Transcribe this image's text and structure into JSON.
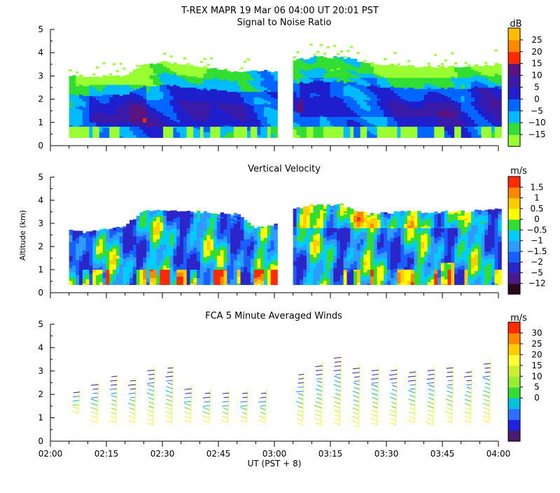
{
  "header": {
    "line1": "T-REX   MAPR 19 Mar 06   04:00 UT   20:01   PST"
  },
  "shared_axes": {
    "ylabel": "Altitude (km)",
    "xlabel": "UT  (PST + 8)",
    "x_ticks": [
      "02:00",
      "02:15",
      "02:30",
      "02:45",
      "03:00",
      "03:15",
      "03:30",
      "03:45",
      "04:00"
    ],
    "x_range_min": [
      0,
      120
    ],
    "y_ticks": [
      "0",
      "1",
      "2",
      "3",
      "4",
      "5"
    ],
    "y_range_km": [
      0,
      5
    ]
  },
  "colors": {
    "palette_snr": [
      "#99ff33",
      "#33dd33",
      "#00bbff",
      "#0066ff",
      "#1f1fcc",
      "#3a1aa8",
      "#5a137f",
      "#ff2a00",
      "#ff8800",
      "#ffbb00"
    ],
    "palette_vv": [
      "#2a0a1e",
      "#4a1a8a",
      "#2a26c8",
      "#1a5fff",
      "#2f9bff",
      "#00ccff",
      "#33dd33",
      "#ffff00",
      "#ffcc00",
      "#ff8800",
      "#ff2a00"
    ],
    "palette_wind": [
      "#4a1a6e",
      "#2020dd",
      "#2f6fff",
      "#00c0e0",
      "#33dd33",
      "#99ee33",
      "#ccee33",
      "#ffff33",
      "#ffcc00",
      "#ff8800",
      "#ff2a00"
    ]
  },
  "chart_data": [
    {
      "type": "heatmap",
      "title": "Signal to Noise Ratio",
      "colorbar_unit": "dB",
      "colorbar_ticks": [
        "25",
        "20",
        "15",
        "10",
        "5",
        "0",
        "−5",
        "−10",
        "−15"
      ],
      "colorbar_values": [
        25,
        20,
        15,
        10,
        5,
        0,
        -5,
        -10,
        -15
      ],
      "xlabel": "UT (PST + 8)",
      "ylabel": "Altitude (km)",
      "ylim": [
        0,
        5
      ],
      "segments_min": [
        [
          5,
          60
        ],
        [
          65,
          120
        ]
      ],
      "bottom_km": 0.35,
      "top_profile": {
        "x_min": [
          5,
          20,
          25,
          30,
          40,
          50,
          60,
          65,
          70,
          78,
          88,
          100,
          110,
          120
        ],
        "top_km": [
          3.0,
          3.0,
          3.5,
          3.6,
          3.4,
          3.2,
          3.2,
          3.7,
          3.8,
          3.8,
          3.5,
          3.4,
          3.4,
          3.5
        ]
      },
      "layers_dB_at_altitude": [
        {
          "alt_km": 0.5,
          "value_dB": -5
        },
        {
          "alt_km": 1.5,
          "value_dB": 5
        },
        {
          "alt_km": 2.5,
          "value_dB": 0
        },
        {
          "alt_km": 3.2,
          "value_dB": -10
        }
      ]
    },
    {
      "type": "heatmap",
      "title": "Vertical Velocity",
      "colorbar_unit": "m/s",
      "colorbar_ticks": [
        "1.5",
        "1",
        "0.5",
        "0",
        "−0.5",
        "−1",
        "−1.5",
        "−2",
        "−5",
        "−12"
      ],
      "colorbar_values": [
        1.5,
        1,
        0.5,
        0,
        -0.5,
        -1,
        -1.5,
        -2,
        -5,
        -12
      ],
      "xlabel": "UT (PST + 8)",
      "ylabel": "Altitude (km)",
      "ylim": [
        0,
        5
      ],
      "segments_min": [
        [
          5,
          60
        ],
        [
          65,
          120
        ]
      ],
      "bottom_km": 0.35,
      "top_profile": {
        "x_min": [
          5,
          10,
          20,
          25,
          30,
          40,
          50,
          55,
          60,
          65,
          70,
          78,
          85,
          95,
          110,
          120
        ],
        "top_km": [
          2.7,
          2.6,
          2.9,
          3.5,
          3.6,
          3.5,
          3.4,
          2.8,
          2.9,
          3.6,
          3.8,
          3.8,
          3.4,
          3.5,
          3.5,
          3.6
        ]
      }
    },
    {
      "type": "scatter",
      "title": "FCA 5 Minute Averaged Winds",
      "colorbar_unit": "m/s",
      "colorbar_ticks": [
        "30",
        "25",
        "20",
        "15",
        "10",
        "5",
        "0"
      ],
      "colorbar_values": [
        30,
        25,
        20,
        15,
        10,
        5,
        0
      ],
      "xlabel": "UT (PST + 8)",
      "ylabel": "Altitude (km)",
      "ylim": [
        0,
        5
      ],
      "profile_times_min": [
        7.5,
        12.5,
        17.5,
        22.5,
        27.5,
        32.5,
        37.5,
        42.5,
        47.5,
        52.5,
        57.5,
        67.5,
        72.5,
        77.5,
        82.5,
        87.5,
        92.5,
        97.5,
        102.5,
        107.5,
        112.5,
        117.5
      ],
      "profile_top_km": [
        2.2,
        2.5,
        2.8,
        2.6,
        3.2,
        3.3,
        2.4,
        2.2,
        2.2,
        2.2,
        2.2,
        2.9,
        3.4,
        3.6,
        3.3,
        3.2,
        3.2,
        3.0,
        3.2,
        3.2,
        3.1,
        3.5
      ],
      "profile_bottom_km": [
        1.2,
        0.8,
        0.8,
        0.8,
        0.7,
        0.8,
        0.8,
        0.8,
        0.8,
        0.8,
        0.8,
        0.7,
        0.7,
        0.7,
        0.6,
        0.7,
        0.7,
        0.8,
        0.7,
        0.8,
        0.8,
        0.8
      ],
      "wind_speed_low_ms": 20,
      "wind_speed_high_ms": 2
    }
  ]
}
